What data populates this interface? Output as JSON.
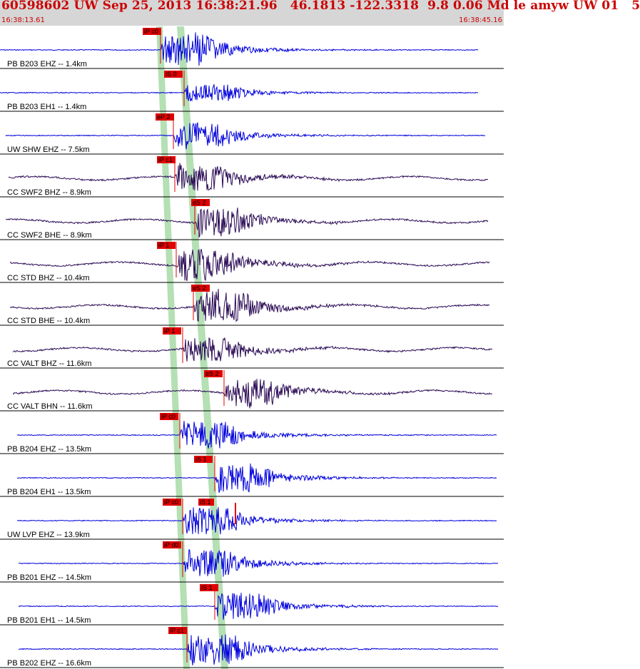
{
  "header": {
    "title": "60598602 UW Sep 25, 2013 16:38:21.96   46.1813 -122.3318  9.8 0.06 Md le amyw UW 01   5",
    "start_time": "16:38:13.61",
    "end_time": "16:38:45.16"
  },
  "colors": {
    "header_bg": "#d6d6d6",
    "header_text": "#cc0000",
    "trace_blue": "#0000dd",
    "trace_purple": "#2a0a55",
    "pick_red": "#e00000",
    "band_green": "#b4e0b4",
    "divider": "#000000"
  },
  "channels": [
    {
      "label": "PB B203 EHZ -- 1.4km",
      "pick": "iP c0",
      "color": "blue",
      "amp": "high",
      "kind": "P"
    },
    {
      "label": "PB B203 EH1 -- 1.4km",
      "pick": "iS 0",
      "color": "blue",
      "amp": "low",
      "kind": "S"
    },
    {
      "label": "UW SHW EHZ -- 7.5km",
      "pick": "eP 2",
      "color": "blue",
      "amp": "med",
      "kind": "P"
    },
    {
      "label": "CC SWF2 BHZ -- 8.9km",
      "pick": "iP c1",
      "color": "purple",
      "amp": "med",
      "kind": "P"
    },
    {
      "label": "CC SWF2 BHE -- 8.9km",
      "pick": "eS 2",
      "color": "purple",
      "amp": "med",
      "kind": "S"
    },
    {
      "label": "CC STD BHZ -- 10.4km",
      "pick": "iP 1",
      "color": "purple",
      "amp": "high",
      "kind": "P"
    },
    {
      "label": "CC STD BHE -- 10.4km",
      "pick": "eS 2",
      "color": "purple",
      "amp": "high",
      "kind": "S"
    },
    {
      "label": "CC VALT BHZ -- 11.6km",
      "pick": "iP 1",
      "color": "purple",
      "amp": "med",
      "kind": "P"
    },
    {
      "label": "CC VALT BHN -- 11.6km",
      "pick": "eS 2",
      "color": "purple",
      "amp": "med",
      "kind": "S"
    },
    {
      "label": "PB B204 EHZ -- 13.5km",
      "pick": "iP c0",
      "color": "blue",
      "amp": "med",
      "kind": "P"
    },
    {
      "label": "PB B204 EH1 -- 13.5km",
      "pick": "iS 1",
      "color": "blue",
      "amp": "med",
      "kind": "S"
    },
    {
      "label": "UW LVP EHZ -- 13.9km",
      "pick": "iP c0",
      "pick2": "iS 1",
      "color": "blue",
      "amp": "med",
      "kind": "P"
    },
    {
      "label": "PB B201 EHZ -- 14.5km",
      "pick": "iP d0",
      "color": "blue",
      "amp": "med",
      "kind": "P"
    },
    {
      "label": "PB B201 EH1 -- 14.5km",
      "pick": "iS 1",
      "color": "blue",
      "amp": "med",
      "kind": "S"
    },
    {
      "label": "PB B202 EHZ -- 16.6km",
      "pick": "iP c1",
      "color": "blue",
      "amp": "high",
      "kind": "P"
    }
  ]
}
